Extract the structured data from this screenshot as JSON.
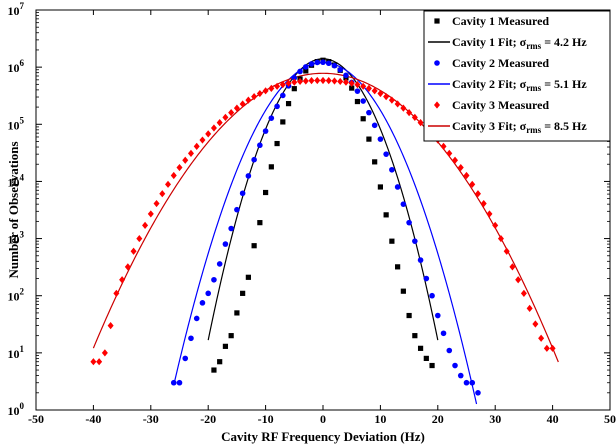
{
  "chart_data": {
    "type": "scatter",
    "title": "",
    "xlabel": "Cavity RF Frequency Deviation (Hz)",
    "ylabel": "Number of Observations",
    "xlim": [
      -50,
      50
    ],
    "ylim": [
      1,
      10000000
    ],
    "yscale": "log",
    "grid": false,
    "legend_position": "top-right",
    "x_ticks": [
      -50,
      -40,
      -30,
      -20,
      -10,
      0,
      10,
      20,
      30,
      40,
      50
    ],
    "x_tick_labels": [
      "-50",
      "-40",
      "-30",
      "-20",
      "-10",
      "0",
      "10",
      "20",
      "30",
      "40",
      "50"
    ],
    "y_ticks": [
      1,
      10,
      100,
      1000,
      10000,
      100000,
      1000000,
      10000000
    ],
    "y_tick_bases": [
      "10",
      "10",
      "10",
      "10",
      "10",
      "10",
      "10",
      "10"
    ],
    "y_tick_exponents": [
      "0",
      "1",
      "2",
      "3",
      "4",
      "5",
      "6",
      "7"
    ],
    "series": [
      {
        "name": "Cavity 1 Measured",
        "kind": "markers",
        "marker": "square",
        "color": "#000000",
        "x": [
          -19,
          -18,
          -17,
          -16,
          -15,
          -14,
          -13,
          -12,
          -11,
          -10,
          -9,
          -8,
          -7,
          -6,
          -5,
          -4,
          -3,
          -2,
          -1,
          0,
          1,
          2,
          3,
          4,
          5,
          6,
          7,
          8,
          9,
          10,
          11,
          12,
          13,
          14,
          15,
          16,
          17,
          18,
          19
        ],
        "y": [
          5,
          7,
          13,
          20,
          50,
          110,
          210,
          750,
          1900,
          6400,
          18000,
          46000,
          110000,
          230000,
          420000,
          620000,
          860000,
          1080000,
          1250000,
          1320000,
          1250000,
          1090000,
          880000,
          650000,
          430000,
          250000,
          125000,
          55000,
          22000,
          8000,
          2600,
          900,
          320,
          120,
          45,
          20,
          12,
          8,
          6
        ]
      },
      {
        "name": "Cavity 1 Fit; σrms = 4.2 Hz",
        "label_main": "Cavity 1 Fit; σ",
        "label_sub": "rms",
        "label_tail": " =  4.2 Hz",
        "kind": "line",
        "color": "#000000",
        "sigma": 4.2,
        "peak": 1400000,
        "x_range": [
          -20,
          20
        ]
      },
      {
        "name": "Cavity 2 Measured",
        "kind": "markers",
        "marker": "circle",
        "color": "#0000ff",
        "x": [
          -26,
          -25,
          -24,
          -23,
          -22,
          -21,
          -20,
          -19,
          -18,
          -17,
          -16,
          -15,
          -14,
          -13,
          -12,
          -11,
          -10,
          -9,
          -8,
          -7,
          -6,
          -5,
          -4,
          -3,
          -2,
          -1,
          0,
          1,
          2,
          3,
          4,
          5,
          6,
          7,
          8,
          9,
          10,
          11,
          12,
          13,
          14,
          15,
          16,
          17,
          18,
          19,
          20,
          21,
          22,
          23,
          24,
          25,
          26,
          27
        ],
        "y": [
          3,
          3,
          8,
          18,
          40,
          75,
          110,
          190,
          360,
          800,
          1500,
          3200,
          6200,
          12500,
          24000,
          43000,
          76000,
          128000,
          206000,
          320000,
          470000,
          650000,
          840000,
          1010000,
          1140000,
          1210000,
          1220000,
          1170000,
          1060000,
          900000,
          720000,
          540000,
          380000,
          255000,
          160000,
          96000,
          55000,
          30000,
          16000,
          8000,
          4000,
          1900,
          900,
          420,
          200,
          100,
          45,
          22,
          11,
          6,
          4,
          3,
          3,
          2
        ]
      },
      {
        "name": "Cavity 2 Fit; σrms = 5.1 Hz",
        "label_main": "Cavity 2 Fit; σ",
        "label_sub": "rms",
        "label_tail": " =  5.1 Hz",
        "kind": "line",
        "color": "#0000ff",
        "sigma": 5.1,
        "peak": 1200000,
        "x_range": [
          -26,
          27
        ]
      },
      {
        "name": "Cavity 3 Measured",
        "kind": "markers",
        "marker": "diamond",
        "color": "#ff0000",
        "x": [
          -40,
          -39,
          -38,
          -37,
          -36,
          -35,
          -34,
          -33,
          -32,
          -31,
          -30,
          -29,
          -28,
          -27,
          -26,
          -25,
          -24,
          -23,
          -22,
          -21,
          -20,
          -19,
          -18,
          -17,
          -16,
          -15,
          -14,
          -13,
          -12,
          -11,
          -10,
          -9,
          -8,
          -7,
          -6,
          -5,
          -4,
          -3,
          -2,
          -1,
          0,
          1,
          2,
          3,
          4,
          5,
          6,
          7,
          8,
          9,
          10,
          11,
          12,
          13,
          14,
          15,
          16,
          17,
          18,
          19,
          20,
          21,
          22,
          23,
          24,
          25,
          26,
          27,
          28,
          29,
          30,
          31,
          32,
          33,
          34,
          35,
          36,
          37,
          38,
          39,
          40
        ],
        "y": [
          7,
          7,
          10,
          30,
          110,
          190,
          320,
          600,
          1000,
          1700,
          2700,
          4100,
          6100,
          8900,
          12700,
          17500,
          23500,
          31000,
          41000,
          53000,
          68000,
          86000,
          107000,
          132000,
          160000,
          192000,
          227000,
          265000,
          305000,
          345000,
          385000,
          425000,
          462000,
          495000,
          522000,
          545000,
          562000,
          573000,
          580000,
          583000,
          583000,
          580000,
          573000,
          562000,
          545000,
          522000,
          495000,
          462000,
          425000,
          385000,
          345000,
          305000,
          265000,
          227000,
          192000,
          160000,
          132000,
          107000,
          86000,
          68000,
          53000,
          41000,
          31000,
          23500,
          17500,
          12700,
          8900,
          6100,
          4100,
          2700,
          1700,
          1000,
          600,
          320,
          190,
          110,
          60,
          32,
          18,
          12,
          12
        ]
      },
      {
        "name": "Cavity 3 Fit; σrms = 8.5 Hz",
        "label_main": "Cavity 3 Fit; σ",
        "label_sub": "rms",
        "label_tail": " = 8.5 Hz",
        "kind": "line",
        "color": "#cc0000",
        "sigma": 8.5,
        "peak": 780000,
        "x_range": [
          -40,
          41
        ]
      }
    ]
  }
}
